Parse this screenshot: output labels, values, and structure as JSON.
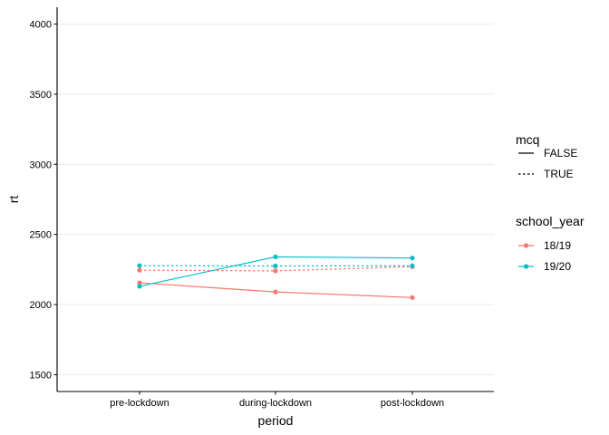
{
  "chart_data": {
    "type": "line",
    "xlabel": "period",
    "ylabel": "rt",
    "categories": [
      "pre-lockdown",
      "during-lockdown",
      "post-lockdown"
    ],
    "ylim": [
      1380,
      4120
    ],
    "yticks": [
      1500,
      2000,
      2500,
      3000,
      3500,
      4000
    ],
    "grid": "horizontal",
    "legend_position": "right",
    "legends": [
      {
        "title": "mcq",
        "entries": [
          {
            "label": "FALSE",
            "dash": "solid"
          },
          {
            "label": "TRUE",
            "dash": "dotted"
          }
        ]
      },
      {
        "title": "school_year",
        "entries": [
          {
            "label": "18/19",
            "color": "#F8766D"
          },
          {
            "label": "19/20",
            "color": "#00BFC4"
          }
        ]
      }
    ],
    "series": [
      {
        "school_year": "18/19",
        "mcq": "FALSE",
        "color": "#F8766D",
        "dash": "solid",
        "values": [
          2155,
          2090,
          2050
        ]
      },
      {
        "school_year": "18/19",
        "mcq": "TRUE",
        "color": "#F8766D",
        "dash": "dotted",
        "values": [
          2245,
          2240,
          2270
        ]
      },
      {
        "school_year": "19/20",
        "mcq": "FALSE",
        "color": "#00BFC4",
        "dash": "solid",
        "values": [
          2130,
          2340,
          2332
        ]
      },
      {
        "school_year": "19/20",
        "mcq": "TRUE",
        "color": "#00BFC4",
        "dash": "dotted",
        "values": [
          2278,
          2275,
          2277
        ]
      }
    ]
  }
}
